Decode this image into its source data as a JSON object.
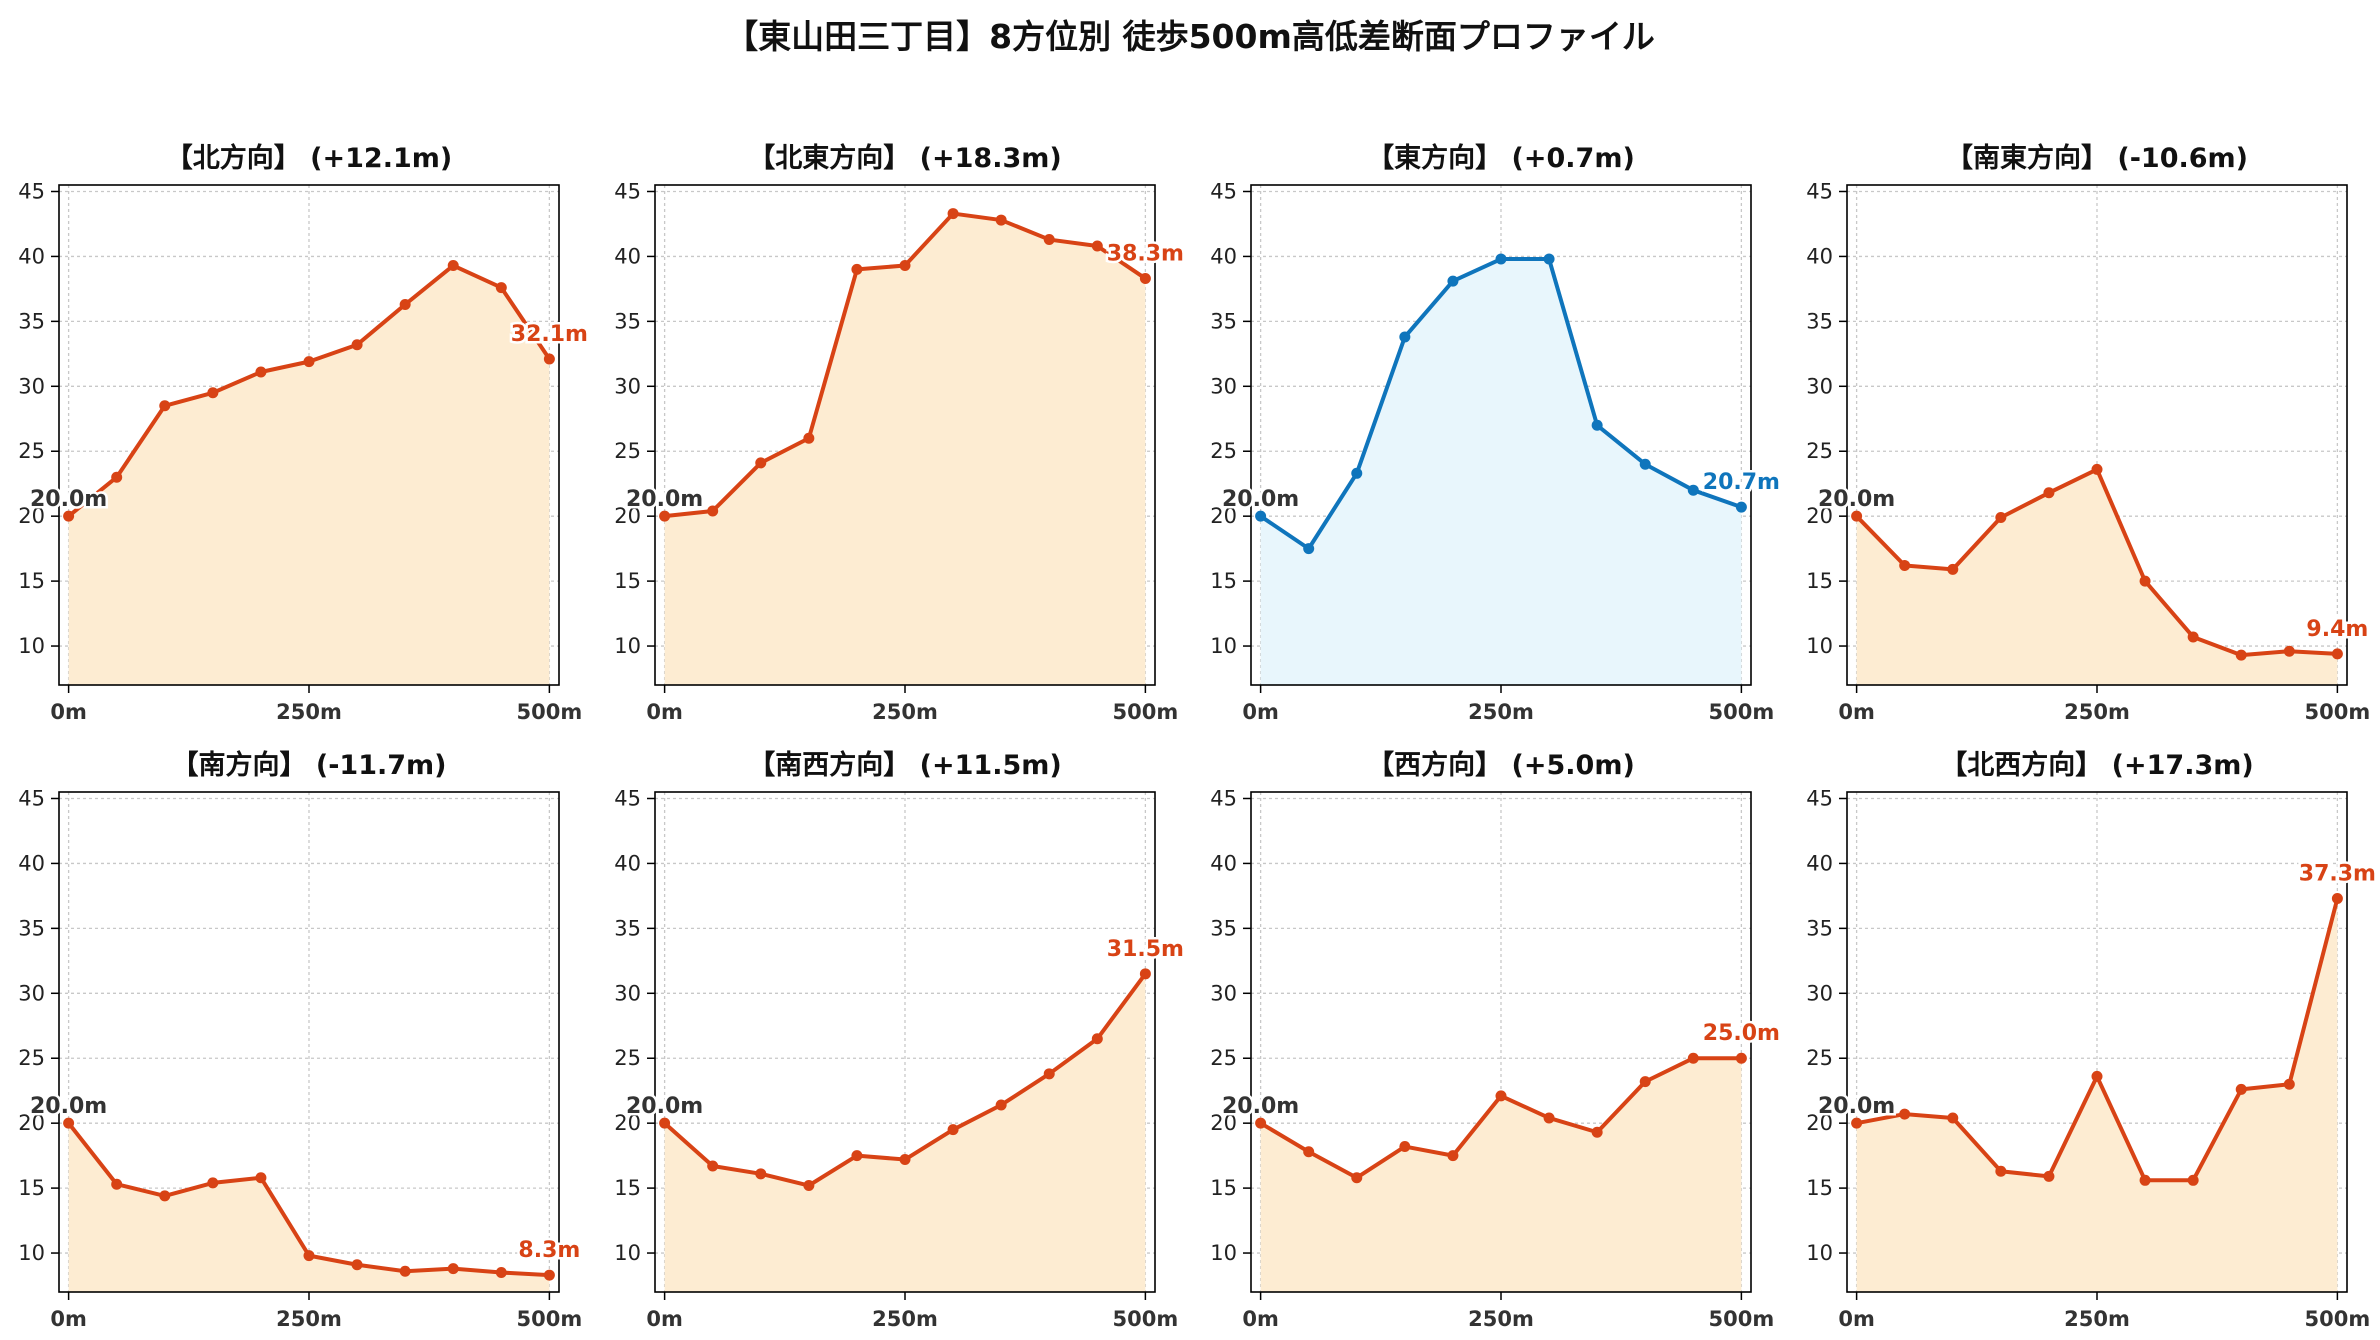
{
  "title": "【東山田三丁目】8方位別 徒歩500m高低差断面プロファイル",
  "chart_data": [
    {
      "type": "line",
      "title": "【北方向】 (+12.1m)",
      "x": [
        0,
        50,
        100,
        150,
        200,
        250,
        300,
        350,
        400,
        450,
        500
      ],
      "values": [
        20.0,
        23.0,
        28.5,
        29.5,
        31.1,
        31.9,
        33.2,
        36.3,
        39.3,
        37.6,
        32.1
      ],
      "start_label": "20.0m",
      "end_label": "32.1m",
      "color": "#d84315",
      "fill": "#fdecd2",
      "xticks": [
        "0m",
        "250m",
        "500m"
      ],
      "yticks": [
        "10",
        "15",
        "20",
        "25",
        "30",
        "35",
        "40",
        "45"
      ],
      "ylim": [
        7,
        45.5
      ],
      "xlim": [
        -10,
        510
      ],
      "grid": true
    },
    {
      "type": "line",
      "title": "【北東方向】 (+18.3m)",
      "x": [
        0,
        50,
        100,
        150,
        200,
        250,
        300,
        350,
        400,
        450,
        500
      ],
      "values": [
        20.0,
        20.4,
        24.1,
        26.0,
        39.0,
        39.3,
        43.3,
        42.8,
        41.3,
        40.8,
        38.3
      ],
      "start_label": "20.0m",
      "end_label": "38.3m",
      "color": "#d84315",
      "fill": "#fdecd2",
      "xticks": [
        "0m",
        "250m",
        "500m"
      ],
      "yticks": [
        "10",
        "15",
        "20",
        "25",
        "30",
        "35",
        "40",
        "45"
      ],
      "ylim": [
        7,
        45.5
      ],
      "xlim": [
        -10,
        510
      ],
      "grid": true
    },
    {
      "type": "line",
      "title": "【東方向】 (+0.7m)",
      "x": [
        0,
        50,
        100,
        150,
        200,
        250,
        300,
        350,
        400,
        450,
        500
      ],
      "values": [
        20.0,
        17.5,
        23.3,
        33.8,
        38.1,
        39.8,
        39.8,
        27.0,
        24.0,
        22.0,
        20.7
      ],
      "start_label": "20.0m",
      "end_label": "20.7m",
      "color": "#0f75bc",
      "fill": "#e8f6fc",
      "xticks": [
        "0m",
        "250m",
        "500m"
      ],
      "yticks": [
        "10",
        "15",
        "20",
        "25",
        "30",
        "35",
        "40",
        "45"
      ],
      "ylim": [
        7,
        45.5
      ],
      "xlim": [
        -10,
        510
      ],
      "grid": true
    },
    {
      "type": "line",
      "title": "【南東方向】 (-10.6m)",
      "x": [
        0,
        50,
        100,
        150,
        200,
        250,
        300,
        350,
        400,
        450,
        500
      ],
      "values": [
        20.0,
        16.2,
        15.9,
        19.9,
        21.8,
        23.6,
        15.0,
        10.7,
        9.3,
        9.6,
        9.4
      ],
      "start_label": "20.0m",
      "end_label": "9.4m",
      "color": "#d84315",
      "fill": "#fdecd2",
      "xticks": [
        "0m",
        "250m",
        "500m"
      ],
      "yticks": [
        "10",
        "15",
        "20",
        "25",
        "30",
        "35",
        "40",
        "45"
      ],
      "ylim": [
        7,
        45.5
      ],
      "xlim": [
        -10,
        510
      ],
      "grid": true
    },
    {
      "type": "line",
      "title": "【南方向】 (-11.7m)",
      "x": [
        0,
        50,
        100,
        150,
        200,
        250,
        300,
        350,
        400,
        450,
        500
      ],
      "values": [
        20.0,
        15.3,
        14.4,
        15.4,
        15.8,
        9.8,
        9.1,
        8.6,
        8.8,
        8.5,
        8.3
      ],
      "start_label": "20.0m",
      "end_label": "8.3m",
      "color": "#d84315",
      "fill": "#fdecd2",
      "xticks": [
        "0m",
        "250m",
        "500m"
      ],
      "yticks": [
        "10",
        "15",
        "20",
        "25",
        "30",
        "35",
        "40",
        "45"
      ],
      "ylim": [
        7,
        45.5
      ],
      "xlim": [
        -10,
        510
      ],
      "grid": true
    },
    {
      "type": "line",
      "title": "【南西方向】 (+11.5m)",
      "x": [
        0,
        50,
        100,
        150,
        200,
        250,
        300,
        350,
        400,
        450,
        500
      ],
      "values": [
        20.0,
        16.7,
        16.1,
        15.2,
        17.5,
        17.2,
        19.5,
        21.4,
        23.8,
        26.5,
        31.5
      ],
      "start_label": "20.0m",
      "end_label": "31.5m",
      "color": "#d84315",
      "fill": "#fdecd2",
      "xticks": [
        "0m",
        "250m",
        "500m"
      ],
      "yticks": [
        "10",
        "15",
        "20",
        "25",
        "30",
        "35",
        "40",
        "45"
      ],
      "ylim": [
        7,
        45.5
      ],
      "xlim": [
        -10,
        510
      ],
      "grid": true
    },
    {
      "type": "line",
      "title": "【西方向】 (+5.0m)",
      "x": [
        0,
        50,
        100,
        150,
        200,
        250,
        300,
        350,
        400,
        450,
        500
      ],
      "values": [
        20.0,
        17.8,
        15.8,
        18.2,
        17.5,
        22.1,
        20.4,
        19.3,
        23.2,
        25.0,
        25.0
      ],
      "start_label": "20.0m",
      "end_label": "25.0m",
      "color": "#d84315",
      "fill": "#fdecd2",
      "xticks": [
        "0m",
        "250m",
        "500m"
      ],
      "yticks": [
        "10",
        "15",
        "20",
        "25",
        "30",
        "35",
        "40",
        "45"
      ],
      "ylim": [
        7,
        45.5
      ],
      "xlim": [
        -10,
        510
      ],
      "grid": true
    },
    {
      "type": "line",
      "title": "【北西方向】 (+17.3m)",
      "x": [
        0,
        50,
        100,
        150,
        200,
        250,
        300,
        350,
        400,
        450,
        500
      ],
      "values": [
        20.0,
        20.7,
        20.4,
        16.3,
        15.9,
        23.6,
        15.6,
        15.6,
        22.6,
        23.0,
        37.3
      ],
      "start_label": "20.0m",
      "end_label": "37.3m",
      "color": "#d84315",
      "fill": "#fdecd2",
      "xticks": [
        "0m",
        "250m",
        "500m"
      ],
      "yticks": [
        "10",
        "15",
        "20",
        "25",
        "30",
        "35",
        "40",
        "45"
      ],
      "ylim": [
        7,
        45.5
      ],
      "xlim": [
        -10,
        510
      ],
      "grid": true
    }
  ]
}
